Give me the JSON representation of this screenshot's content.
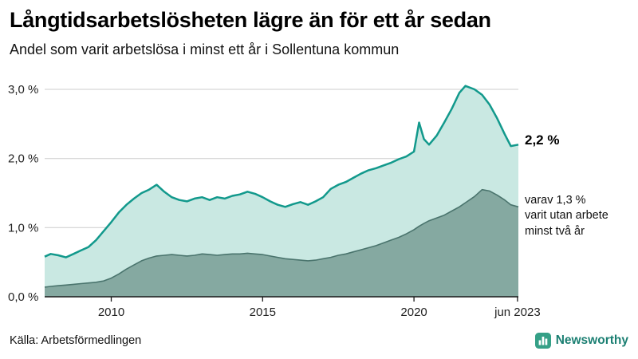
{
  "footer": {
    "source": "Källa: Arbetsförmedlingen",
    "brand": "Newsworthy"
  },
  "colors": {
    "line_total": "#12998c",
    "fill_total": "#c9e8e2",
    "line_two_year": "#4a746d",
    "fill_two_year": "#85a9a1",
    "grid": "#cccccc",
    "axis": "#1a1a1a",
    "brand_green": "#35a087",
    "brand_text": "#1b7f72"
  },
  "chart_data": {
    "type": "area",
    "title": "Långtidsarbetslösheten lägre än för ett år sedan",
    "subtitle": "Andel som varit arbetslösa i minst ett år i Sollentuna kommun",
    "x_start": 2007.8,
    "x_end": 2023.45,
    "ylim": [
      0,
      3.3
    ],
    "grid": true,
    "legend_position": "none",
    "y_ticks": [
      {
        "value": 0,
        "label": "0,0 %"
      },
      {
        "value": 1,
        "label": "1,0 %"
      },
      {
        "value": 2,
        "label": "2,0 %"
      },
      {
        "value": 3,
        "label": "3,0 %"
      }
    ],
    "x_ticks": [
      {
        "value": 2010,
        "label": "2010"
      },
      {
        "value": 2015,
        "label": "2015"
      },
      {
        "value": 2020,
        "label": "2020"
      },
      {
        "value": 2023.42,
        "label": "jun 2023"
      }
    ],
    "x": [
      2007.8,
      2008.0,
      2008.25,
      2008.5,
      2008.75,
      2009.0,
      2009.25,
      2009.5,
      2009.75,
      2010.0,
      2010.25,
      2010.5,
      2010.75,
      2011.0,
      2011.25,
      2011.5,
      2011.75,
      2012.0,
      2012.25,
      2012.5,
      2012.75,
      2013.0,
      2013.25,
      2013.5,
      2013.75,
      2014.0,
      2014.25,
      2014.5,
      2014.75,
      2015.0,
      2015.25,
      2015.5,
      2015.75,
      2016.0,
      2016.25,
      2016.5,
      2016.75,
      2017.0,
      2017.25,
      2017.5,
      2017.75,
      2018.0,
      2018.25,
      2018.5,
      2018.75,
      2019.0,
      2019.25,
      2019.5,
      2019.75,
      2020.0,
      2020.17,
      2020.33,
      2020.5,
      2020.75,
      2021.0,
      2021.25,
      2021.5,
      2021.7,
      2022.0,
      2022.25,
      2022.5,
      2022.75,
      2023.0,
      2023.2,
      2023.45
    ],
    "series": [
      {
        "key": "total",
        "name": "Arbetslösa minst ett år",
        "line_color": "#12998c",
        "fill_color": "#c9e8e2",
        "line_width": 2.5,
        "values": [
          0.58,
          0.62,
          0.6,
          0.57,
          0.62,
          0.67,
          0.72,
          0.82,
          0.95,
          1.08,
          1.22,
          1.33,
          1.42,
          1.5,
          1.55,
          1.62,
          1.52,
          1.44,
          1.4,
          1.38,
          1.42,
          1.44,
          1.4,
          1.44,
          1.42,
          1.46,
          1.48,
          1.52,
          1.49,
          1.44,
          1.38,
          1.33,
          1.3,
          1.34,
          1.37,
          1.33,
          1.38,
          1.44,
          1.56,
          1.62,
          1.66,
          1.72,
          1.78,
          1.83,
          1.86,
          1.9,
          1.94,
          1.99,
          2.03,
          2.1,
          2.52,
          2.28,
          2.2,
          2.33,
          2.52,
          2.72,
          2.95,
          3.05,
          3.0,
          2.92,
          2.78,
          2.58,
          2.35,
          2.18,
          2.2
        ]
      },
      {
        "key": "two-year",
        "name": "Arbetslösa minst två år",
        "line_color": "#4a746d",
        "fill_color": "#85a9a1",
        "line_width": 1.6,
        "values": [
          0.14,
          0.15,
          0.16,
          0.17,
          0.18,
          0.19,
          0.2,
          0.21,
          0.23,
          0.27,
          0.33,
          0.4,
          0.46,
          0.52,
          0.56,
          0.59,
          0.6,
          0.61,
          0.6,
          0.59,
          0.6,
          0.62,
          0.61,
          0.6,
          0.61,
          0.62,
          0.62,
          0.63,
          0.62,
          0.61,
          0.59,
          0.57,
          0.55,
          0.54,
          0.53,
          0.52,
          0.53,
          0.55,
          0.57,
          0.6,
          0.62,
          0.65,
          0.68,
          0.71,
          0.74,
          0.78,
          0.82,
          0.86,
          0.91,
          0.97,
          1.02,
          1.06,
          1.1,
          1.14,
          1.18,
          1.24,
          1.3,
          1.36,
          1.45,
          1.55,
          1.53,
          1.47,
          1.4,
          1.33,
          1.3
        ]
      }
    ],
    "end_label": "2,2 %",
    "annotation_lines": [
      "varav 1,3 %",
      "varit utan arbete",
      "minst två år"
    ]
  }
}
